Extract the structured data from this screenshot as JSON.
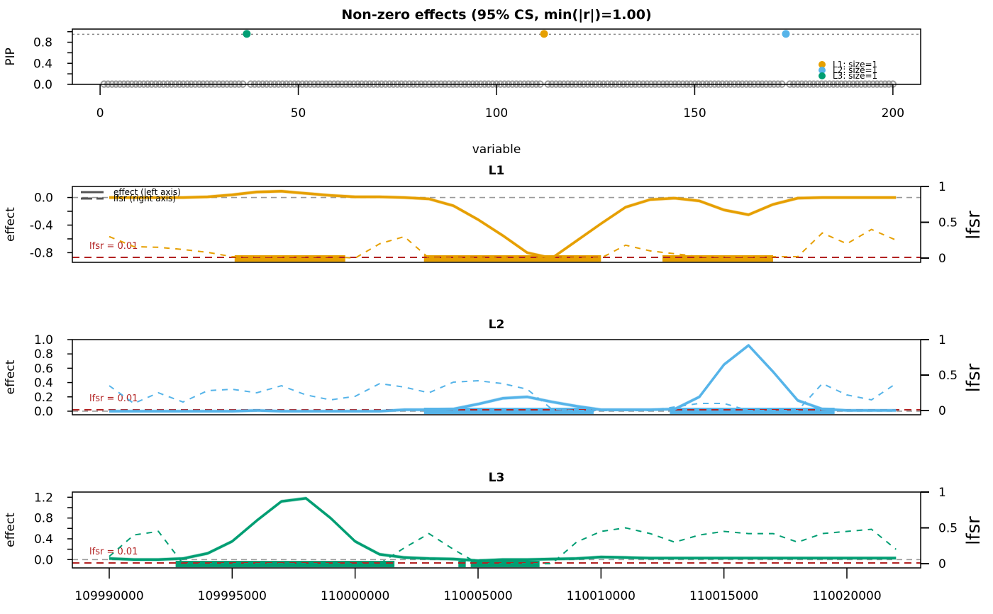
{
  "chart_data": [
    {
      "type": "scatter",
      "panel": "pip",
      "title": "Non-zero effects (95% CS, min(|r|)=1.00)",
      "xlabel": "variable",
      "ylabel": "PIP",
      "xlim": [
        -7,
        207
      ],
      "ylim": [
        0,
        1.05
      ],
      "xticks": [
        0,
        50,
        100,
        150,
        200
      ],
      "yticks": [
        0.0,
        0.2,
        0.4,
        0.6,
        0.8,
        1.0
      ],
      "ytick_labels": [
        "0.0",
        "",
        "0.4",
        "",
        "0.8",
        ""
      ],
      "reference_line": 0.95,
      "n_variables": 200,
      "background_color": "#999999",
      "highlighted": [
        {
          "variable": 37,
          "pip": 1.0,
          "cs": "L3",
          "color": "#009E73"
        },
        {
          "variable": 112,
          "pip": 1.0,
          "cs": "L1",
          "color": "#E69F00"
        },
        {
          "variable": 173,
          "pip": 1.0,
          "cs": "L2",
          "color": "#56B4E9"
        }
      ],
      "legend": [
        {
          "label": "L1: size=1",
          "color": "#E69F00"
        },
        {
          "label": "L2: size=1",
          "color": "#56B4E9"
        },
        {
          "label": "L3: size=1",
          "color": "#009E73"
        }
      ],
      "legend_position": "bottom-right"
    },
    {
      "type": "line",
      "panel": "L1",
      "title": "L1",
      "color": "#E69F00",
      "ylabel": "effect",
      "y2label": "lfsr",
      "xlim": [
        109988500,
        110023000
      ],
      "ylim": [
        -0.94,
        0.16
      ],
      "yticks": [
        0.0,
        -0.2,
        -0.4,
        -0.6,
        -0.8
      ],
      "ytick_labels": [
        "0.0",
        "",
        "-0.4",
        "",
        "-0.8"
      ],
      "y2lim": [
        -0.02,
        1.0
      ],
      "y2ticks": [
        0,
        0.5,
        1
      ],
      "y2tick_labels": [
        "0",
        "0.5",
        "1"
      ],
      "lfsr_threshold": 0.01,
      "lfsr_threshold_label": "lfsr = 0.01",
      "legend": [
        {
          "label": "effect (left axis)",
          "style": "solid"
        },
        {
          "label": "lfsr (right axis)",
          "style": "dashed"
        }
      ],
      "x": [
        109990000,
        109991000,
        109992000,
        109993000,
        109994000,
        109995000,
        109996000,
        109997000,
        109998000,
        109999000,
        110000000,
        110001000,
        110002000,
        110003000,
        110004000,
        110005000,
        110006000,
        110007000,
        110008000,
        110009000,
        110010000,
        110011000,
        110012000,
        110013000,
        110014000,
        110015000,
        110016000,
        110017000,
        110018000,
        110019000,
        110020000,
        110021000,
        110022000
      ],
      "effect": [
        0.0,
        0.0,
        0.0,
        0.0,
        0.01,
        0.04,
        0.08,
        0.09,
        0.06,
        0.03,
        0.01,
        0.01,
        0.0,
        -0.02,
        -0.12,
        -0.32,
        -0.55,
        -0.8,
        -0.88,
        -0.63,
        -0.38,
        -0.14,
        -0.03,
        -0.01,
        -0.05,
        -0.18,
        -0.25,
        -0.1,
        -0.01,
        0.0,
        0.0,
        0.0,
        0.0
      ],
      "lfsr": [
        0.3,
        0.16,
        0.15,
        0.12,
        0.08,
        0.02,
        0.02,
        0.02,
        0.02,
        0.02,
        0.0,
        0.2,
        0.3,
        0.0,
        0.0,
        0.0,
        0.0,
        0.0,
        0.0,
        0.0,
        0.0,
        0.18,
        0.1,
        0.06,
        0.02,
        0.02,
        0.02,
        0.02,
        0.02,
        0.35,
        0.2,
        0.4,
        0.25
      ],
      "cs_bands": [
        [
          109995100,
          109999600
        ],
        [
          110002800,
          110010000
        ],
        [
          110012500,
          110017000
        ]
      ]
    },
    {
      "type": "line",
      "panel": "L2",
      "title": "L2",
      "color": "#56B4E9",
      "ylabel": "effect",
      "y2label": "lfsr",
      "xlim": [
        109988500,
        110023000
      ],
      "ylim": [
        -0.05,
        1.0
      ],
      "yticks": [
        0.0,
        0.2,
        0.4,
        0.6,
        0.8,
        1.0
      ],
      "ytick_labels": [
        "0.0",
        "0.2",
        "0.4",
        "0.6",
        "0.8",
        "1.0"
      ],
      "y2lim": [
        -0.02,
        1.0
      ],
      "y2ticks": [
        0,
        0.5,
        1
      ],
      "y2tick_labels": [
        "0",
        "0.5",
        "1"
      ],
      "lfsr_threshold": 0.01,
      "lfsr_threshold_label": "lfsr = 0.01",
      "x": [
        109990000,
        109991000,
        109992000,
        109993000,
        109994000,
        109995000,
        109996000,
        109997000,
        109998000,
        109999000,
        110000000,
        110001000,
        110002000,
        110003000,
        110004000,
        110005000,
        110006000,
        110007000,
        110008000,
        110009000,
        110010000,
        110011000,
        110012000,
        110013000,
        110014000,
        110015000,
        110016000,
        110017000,
        110018000,
        110019000,
        110020000,
        110021000,
        110022000
      ],
      "effect": [
        0.0,
        0.0,
        0.0,
        0.0,
        0.0,
        0.0,
        0.01,
        0.0,
        0.0,
        0.0,
        0.0,
        0.0,
        0.02,
        0.02,
        0.03,
        0.1,
        0.18,
        0.2,
        0.13,
        0.07,
        0.02,
        0.02,
        0.02,
        0.03,
        0.2,
        0.65,
        0.92,
        0.55,
        0.15,
        0.03,
        0.01,
        0.01,
        0.01
      ],
      "lfsr": [
        0.35,
        0.1,
        0.25,
        0.12,
        0.28,
        0.3,
        0.25,
        0.35,
        0.22,
        0.15,
        0.2,
        0.38,
        0.33,
        0.25,
        0.4,
        0.42,
        0.38,
        0.3,
        0.02,
        0.0,
        0.0,
        0.0,
        0.0,
        0.05,
        0.1,
        0.1,
        0.0,
        0.0,
        0.0,
        0.38,
        0.22,
        0.15,
        0.38
      ],
      "cs_bands": [
        [
          110002800,
          110009700
        ],
        [
          110012800,
          110019500
        ]
      ]
    },
    {
      "type": "line",
      "panel": "L3",
      "title": "L3",
      "color": "#009E73",
      "ylabel": "effect",
      "y2label": "lfsr",
      "xlim": [
        109988500,
        110023000
      ],
      "ylim": [
        -0.16,
        1.3
      ],
      "yticks": [
        0.0,
        0.2,
        0.4,
        0.6,
        0.8,
        1.0,
        1.2
      ],
      "ytick_labels": [
        "0.0",
        "",
        "0.4",
        "",
        "0.8",
        "",
        "1.2"
      ],
      "y2lim": [
        -0.02,
        1.0
      ],
      "y2ticks": [
        0,
        0.5,
        1
      ],
      "y2tick_labels": [
        "0",
        "0.5",
        "1"
      ],
      "lfsr_threshold": 0.01,
      "lfsr_threshold_label": "lfsr = 0.01",
      "xticks": [
        109990000,
        109995000,
        110000000,
        110005000,
        110010000,
        110015000,
        110020000
      ],
      "xtick_labels": [
        "109990000",
        "109995000",
        "110000000",
        "110005000",
        "110010000",
        "110015000",
        "110020000"
      ],
      "x": [
        109990000,
        109991000,
        109992000,
        109993000,
        109994000,
        109995000,
        109996000,
        109997000,
        109998000,
        109999000,
        110000000,
        110001000,
        110002000,
        110003000,
        110004000,
        110005000,
        110006000,
        110007000,
        110008000,
        110009000,
        110010000,
        110011000,
        110012000,
        110013000,
        110014000,
        110015000,
        110016000,
        110017000,
        110018000,
        110019000,
        110020000,
        110021000,
        110022000
      ],
      "effect": [
        0.02,
        0.0,
        0.0,
        0.02,
        0.12,
        0.35,
        0.75,
        1.12,
        1.18,
        0.8,
        0.35,
        0.1,
        0.04,
        0.02,
        0.01,
        -0.02,
        0.0,
        0.0,
        0.01,
        0.02,
        0.05,
        0.04,
        0.03,
        0.03,
        0.03,
        0.03,
        0.03,
        0.03,
        0.03,
        0.03,
        0.03,
        0.03,
        0.03
      ],
      "lfsr": [
        0.1,
        0.4,
        0.45,
        0.0,
        0.0,
        0.0,
        0.0,
        0.0,
        0.0,
        0.0,
        0.0,
        0.0,
        0.22,
        0.42,
        0.2,
        0.0,
        0.0,
        0.0,
        0.0,
        0.3,
        0.45,
        0.5,
        0.42,
        0.3,
        0.4,
        0.45,
        0.42,
        0.42,
        0.3,
        0.42,
        0.45,
        0.48,
        0.2
      ],
      "cs_bands": [
        [
          109992700,
          110001600
        ],
        [
          110004200,
          110004500
        ],
        [
          110004700,
          110007500
        ]
      ]
    }
  ]
}
